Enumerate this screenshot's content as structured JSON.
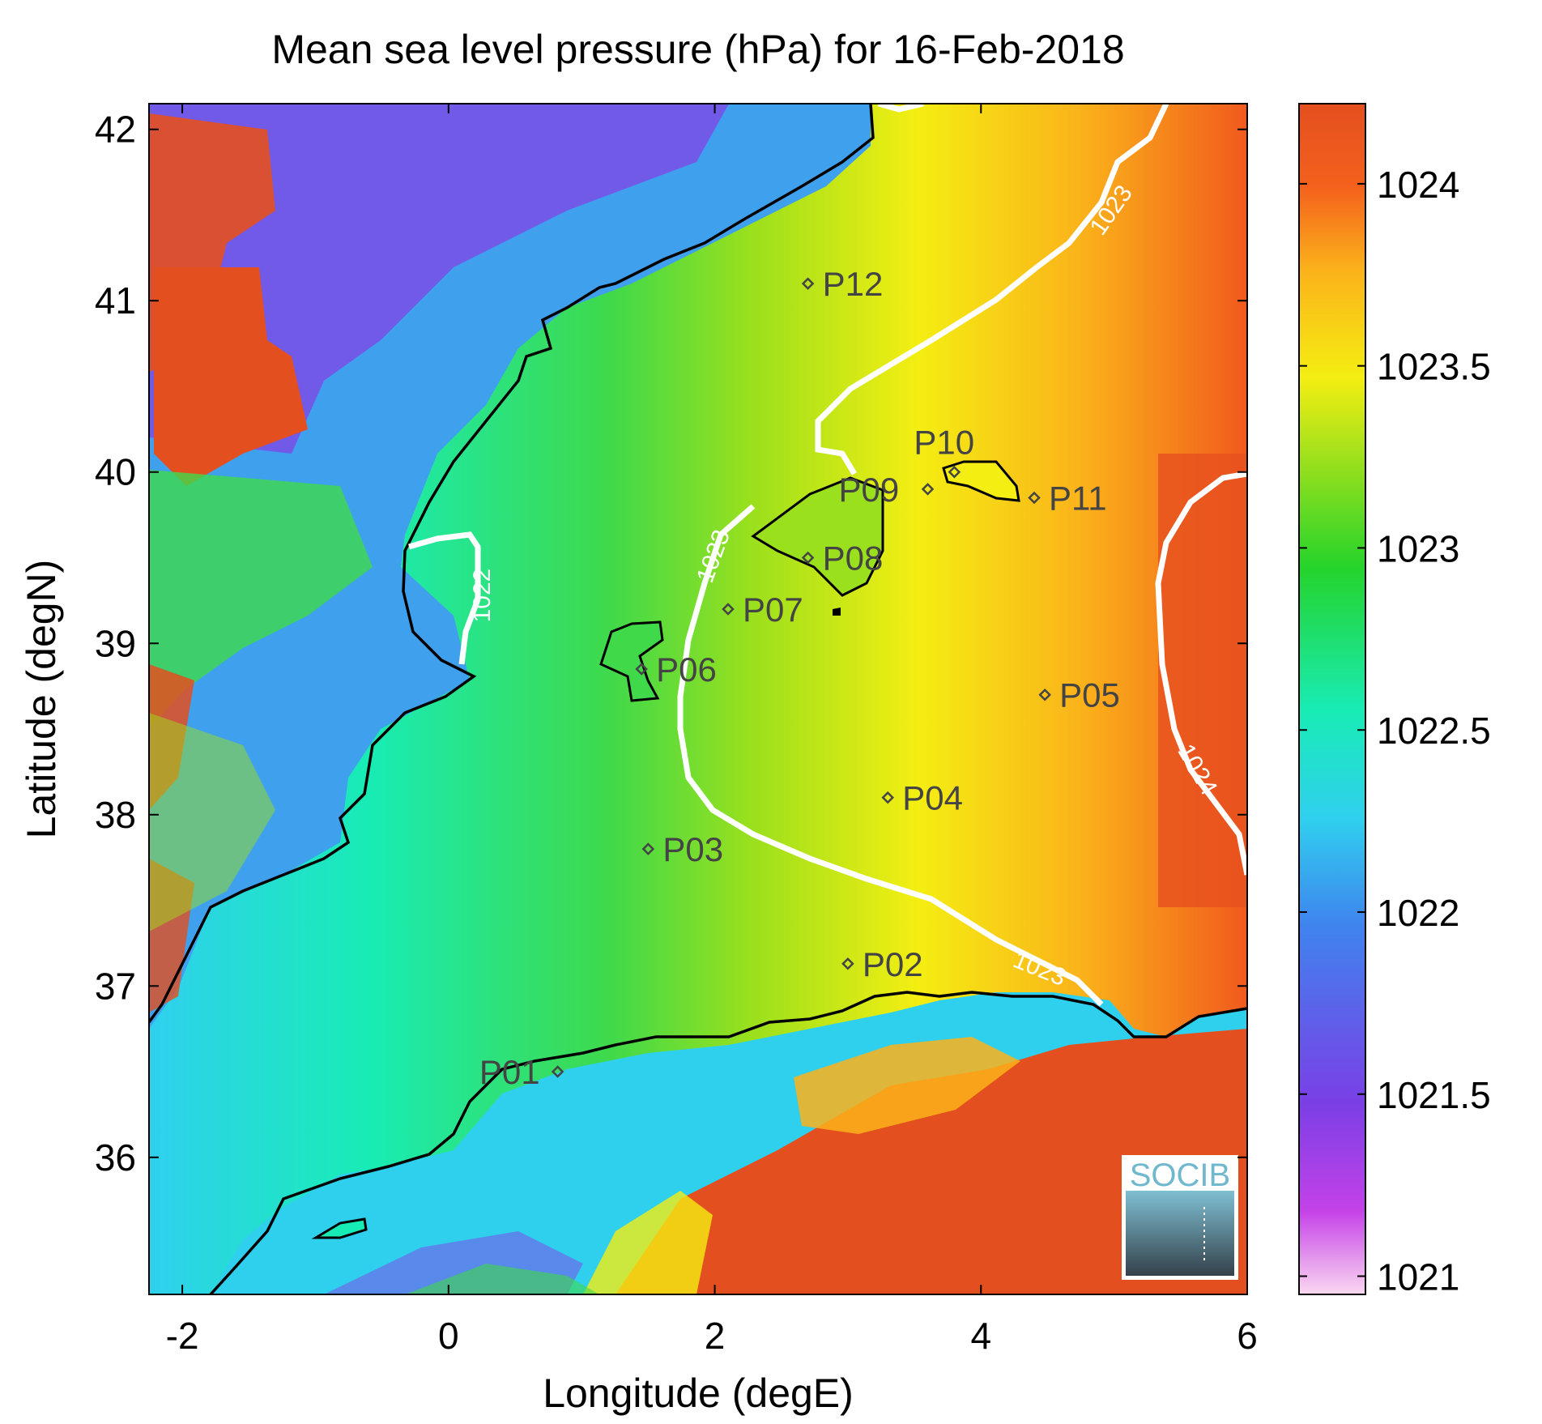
{
  "title": "Mean sea level pressure (hPa) for 16-Feb-2018",
  "xlabel": "Longitude (degE)",
  "ylabel": "Latitude (degN)",
  "xticks": [
    "-2",
    "0",
    "2",
    "4",
    "6"
  ],
  "yticks": [
    "42",
    "41",
    "40",
    "39",
    "38",
    "37",
    "36"
  ],
  "colorbar": {
    "ticks": [
      "1024",
      "1023.5",
      "1023",
      "1022.5",
      "1022",
      "1021.5",
      "1021"
    ],
    "min": 1020.95,
    "max": 1024.22,
    "colormap": [
      "#fbd8f1",
      "#c442e8",
      "#7b3fe6",
      "#3f84ee",
      "#2fd0ee",
      "#18ecb5",
      "#24d32b",
      "#9be01c",
      "#f4ee12",
      "#fbb21a",
      "#f4611c",
      "#e44f1f"
    ]
  },
  "contour_labels": [
    "1022",
    "1023",
    "1023",
    "1023",
    "1024"
  ],
  "points": [
    {
      "label": "P01",
      "lon": 0.82,
      "lat": 36.5
    },
    {
      "label": "P02",
      "lon": 3.0,
      "lat": 37.13
    },
    {
      "label": "P03",
      "lon": 1.5,
      "lat": 37.8
    },
    {
      "label": "P04",
      "lon": 3.3,
      "lat": 38.1
    },
    {
      "label": "P05",
      "lon": 4.48,
      "lat": 38.7
    },
    {
      "label": "P06",
      "lon": 1.45,
      "lat": 38.85
    },
    {
      "label": "P07",
      "lon": 2.1,
      "lat": 39.2
    },
    {
      "label": "P08",
      "lon": 2.7,
      "lat": 39.5
    },
    {
      "label": "P09",
      "lon": 3.6,
      "lat": 39.9
    },
    {
      "label": "P10",
      "lon": 3.8,
      "lat": 40.0
    },
    {
      "label": "P11",
      "lon": 4.4,
      "lat": 39.85
    },
    {
      "label": "P12",
      "lon": 2.7,
      "lat": 41.1
    }
  ],
  "logo": {
    "text": "SOCIB",
    "name": "socib-logo"
  },
  "colors": {
    "coast": "#000000",
    "contour": "#ffffff",
    "marker": "#444444"
  }
}
